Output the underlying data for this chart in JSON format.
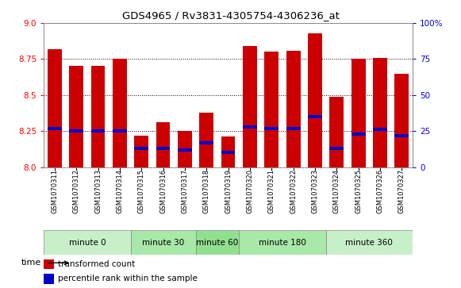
{
  "title": "GDS4965 / Rv3831-4305754-4306236_at",
  "samples": [
    "GSM1070311",
    "GSM1070312",
    "GSM1070313",
    "GSM1070314",
    "GSM1070315",
    "GSM1070316",
    "GSM1070317",
    "GSM1070318",
    "GSM1070319",
    "GSM1070320",
    "GSM1070321",
    "GSM1070322",
    "GSM1070323",
    "GSM1070324",
    "GSM1070325",
    "GSM1070326",
    "GSM1070327"
  ],
  "transformed_count": [
    8.82,
    8.7,
    8.7,
    8.75,
    8.22,
    8.31,
    8.25,
    8.38,
    8.21,
    8.84,
    8.8,
    8.81,
    8.93,
    8.49,
    8.75,
    8.76,
    8.65
  ],
  "percentile_rank": [
    27,
    25,
    25,
    25,
    13,
    13,
    12,
    17,
    10,
    28,
    27,
    27,
    35,
    13,
    23,
    26,
    22
  ],
  "groups": [
    {
      "label": "minute 0",
      "indices": [
        0,
        1,
        2,
        3
      ],
      "color": "#c8f0c8"
    },
    {
      "label": "minute 30",
      "indices": [
        4,
        5,
        6
      ],
      "color": "#a8e8a8"
    },
    {
      "label": "minute 60",
      "indices": [
        7,
        8
      ],
      "color": "#90e090"
    },
    {
      "label": "minute 180",
      "indices": [
        9,
        10,
        11,
        12
      ],
      "color": "#a8e8a8"
    },
    {
      "label": "minute 360",
      "indices": [
        13,
        14,
        15,
        16
      ],
      "color": "#c8f0c8"
    }
  ],
  "ylim": [
    8.0,
    9.0
  ],
  "y2lim": [
    0,
    100
  ],
  "yticks": [
    8.0,
    8.25,
    8.5,
    8.75,
    9.0
  ],
  "y2ticks": [
    0,
    25,
    50,
    75,
    100
  ],
  "bar_color": "#cc0000",
  "percentile_color": "#0000cc",
  "grid_color": "black",
  "sample_bg": "#d4d4d4",
  "plot_bg": "#ffffff",
  "title_color": "#333333",
  "bar_width": 0.65
}
